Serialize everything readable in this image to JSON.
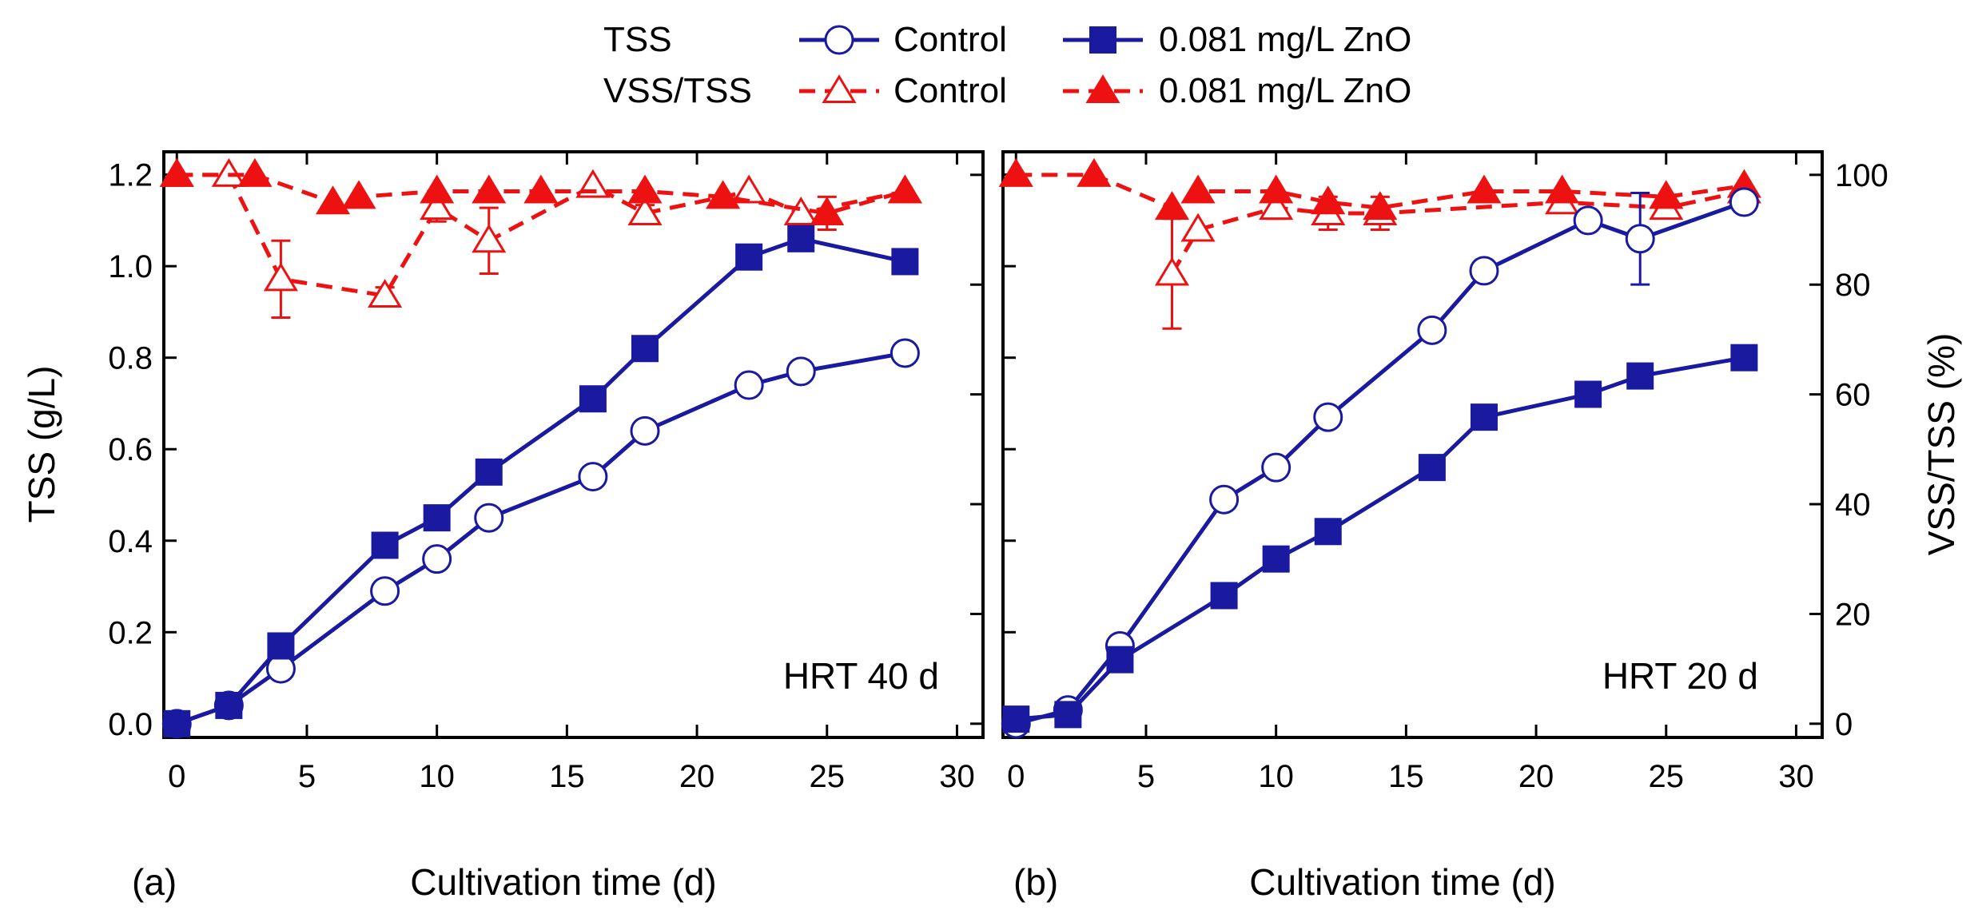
{
  "legend": {
    "rows": [
      {
        "group": "TSS",
        "entries": [
          {
            "label": "Control",
            "series": "tss_control"
          },
          {
            "label": "0.081 mg/L ZnO",
            "series": "tss_zno"
          }
        ]
      },
      {
        "group": "VSS/TSS",
        "entries": [
          {
            "label": "Control",
            "series": "vss_control"
          },
          {
            "label": "0.081 mg/L ZnO",
            "series": "vss_zno"
          }
        ]
      }
    ]
  },
  "colors": {
    "tss": "#1a1aa0",
    "vss": "#ee1111"
  },
  "chart_data": [
    {
      "type": "line",
      "panel_label": "(a)",
      "annotation": "HRT 40 d",
      "xlabel": "Cultivation time (d)",
      "ylabel": "TSS (g/L)",
      "xlim": [
        -0.5,
        31
      ],
      "ylim": [
        -0.03,
        1.25
      ],
      "y2lim": [
        -2.5,
        104.2
      ],
      "xticks": [
        0,
        5,
        10,
        15,
        20,
        25,
        30
      ],
      "yticks": [
        0.0,
        0.2,
        0.4,
        0.6,
        0.8,
        1.0,
        1.2
      ],
      "ytick_labels": [
        "0.0",
        "0.2",
        "0.4",
        "0.6",
        "0.8",
        "1.0",
        "1.2"
      ],
      "series": [
        {
          "name": "TSS Control",
          "key": "tss_control",
          "axis": "y",
          "marker": "circle-open",
          "x": [
            0,
            2,
            4,
            8,
            10,
            12,
            16,
            18,
            22,
            24,
            28
          ],
          "y": [
            0.0,
            0.04,
            0.12,
            0.29,
            0.36,
            0.45,
            0.54,
            0.64,
            0.74,
            0.77,
            0.81
          ],
          "err": [
            0,
            0,
            0,
            0,
            0,
            0,
            0,
            0,
            0,
            0,
            0
          ]
        },
        {
          "name": "TSS 0.081 mg/L ZnO",
          "key": "tss_zno",
          "axis": "y",
          "marker": "square-filled",
          "x": [
            0,
            2,
            4,
            8,
            10,
            12,
            16,
            18,
            22,
            24,
            28
          ],
          "y": [
            0.0,
            0.04,
            0.17,
            0.39,
            0.45,
            0.55,
            0.71,
            0.82,
            1.02,
            1.06,
            1.01
          ],
          "err": [
            0,
            0,
            0,
            0,
            0,
            0,
            0,
            0,
            0,
            0,
            0
          ]
        },
        {
          "name": "VSS/TSS Control",
          "key": "vss_control",
          "axis": "y2",
          "marker": "triangle-open",
          "x": [
            0,
            2,
            4,
            8,
            10,
            12,
            16,
            18,
            22,
            24,
            28
          ],
          "y": [
            100,
            100,
            81,
            78,
            94,
            88,
            98,
            93,
            97,
            93,
            97
          ],
          "err": [
            0,
            0,
            7,
            1.5,
            2.5,
            6,
            0,
            1.5,
            0,
            0,
            0
          ]
        },
        {
          "name": "VSS/TSS 0.081 mg/L ZnO",
          "key": "vss_zno",
          "axis": "y2",
          "marker": "triangle-filled",
          "x": [
            0,
            3,
            6,
            7,
            10,
            12,
            14,
            18,
            21,
            25,
            28
          ],
          "y": [
            100,
            100,
            95,
            96,
            97,
            97,
            97,
            97,
            96,
            93,
            97
          ],
          "err": [
            0,
            0,
            0,
            0,
            0,
            0,
            0,
            0,
            0,
            3,
            0
          ]
        }
      ]
    },
    {
      "type": "line",
      "panel_label": "(b)",
      "annotation": "HRT 20 d",
      "xlabel": "Cultivation time (d)",
      "ylabel": "VSS/TSS (%)",
      "xlim": [
        -0.5,
        31
      ],
      "ylim": [
        -0.03,
        1.25
      ],
      "y2lim": [
        -2.5,
        104.2
      ],
      "xticks": [
        0,
        5,
        10,
        15,
        20,
        25,
        30
      ],
      "y2ticks": [
        0,
        20,
        40,
        60,
        80,
        100
      ],
      "series": [
        {
          "name": "TSS Control",
          "key": "tss_control",
          "axis": "y",
          "marker": "circle-open",
          "x": [
            0,
            2,
            4,
            8,
            10,
            12,
            16,
            18,
            22,
            24,
            28
          ],
          "y": [
            0.0,
            0.03,
            0.17,
            0.49,
            0.56,
            0.67,
            0.86,
            0.99,
            1.1,
            1.06,
            1.14
          ],
          "err": [
            0,
            0,
            0,
            0,
            0,
            0,
            0,
            0,
            0,
            0.1,
            0
          ]
        },
        {
          "name": "TSS 0.081 mg/L ZnO",
          "key": "tss_zno",
          "axis": "y",
          "marker": "square-filled",
          "x": [
            0,
            2,
            4,
            8,
            10,
            12,
            16,
            18,
            22,
            24,
            28
          ],
          "y": [
            0.01,
            0.02,
            0.14,
            0.28,
            0.36,
            0.42,
            0.56,
            0.67,
            0.72,
            0.76,
            0.8
          ],
          "err": [
            0,
            0,
            0,
            0,
            0,
            0,
            0,
            0,
            0,
            0,
            0
          ]
        },
        {
          "name": "VSS/TSS Control",
          "key": "vss_control",
          "axis": "y2",
          "marker": "triangle-open",
          "x": [
            6,
            7,
            10,
            12,
            14,
            21,
            25,
            28
          ],
          "y": [
            82,
            90,
            94,
            93,
            93,
            95,
            94,
            97
          ],
          "err": [
            10,
            0,
            2,
            3,
            3,
            0,
            0,
            0
          ]
        },
        {
          "name": "VSS/TSS 0.081 mg/L ZnO",
          "key": "vss_zno",
          "axis": "y2",
          "marker": "triangle-filled",
          "x": [
            0,
            3,
            6,
            7,
            10,
            12,
            14,
            18,
            21,
            25,
            28
          ],
          "y": [
            100,
            100,
            94,
            97,
            97,
            95,
            94,
            97,
            97,
            96,
            98
          ],
          "err": [
            0,
            0,
            0,
            0,
            0,
            0,
            0,
            0,
            0,
            0,
            0
          ]
        }
      ]
    }
  ]
}
